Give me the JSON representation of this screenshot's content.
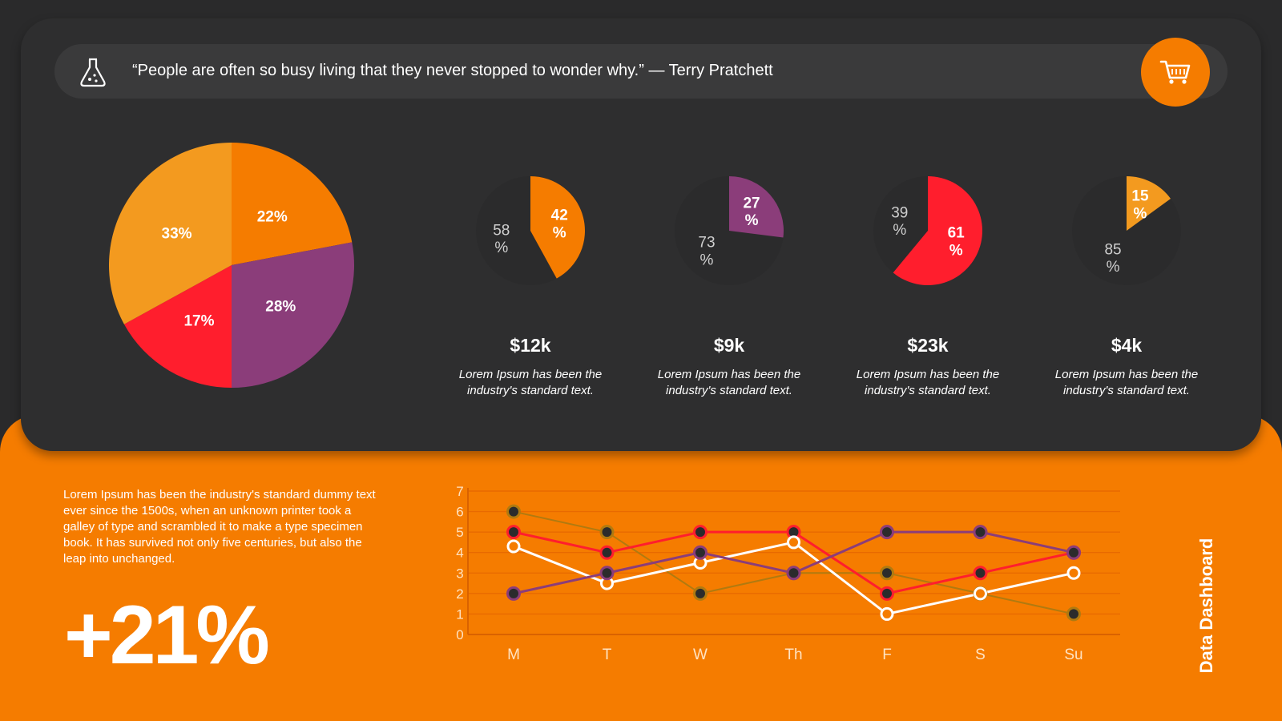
{
  "quote": {
    "text": "“People are often so busy living that they never stopped to wonder why.” — Terry Pratchett"
  },
  "icons": {
    "quote_icon": "flask-icon",
    "action_icon": "shopping-cart-icon"
  },
  "colors": {
    "orange": "#f57c00",
    "light_orange": "#f39a1f",
    "red": "#ff1e2d",
    "purple": "#8b3d7a",
    "card_dark": "#2e2e2f",
    "white": "#ffffff",
    "gold": "#b07a10"
  },
  "kpis": [
    {
      "amount": "$12k",
      "description": "Lorem Ipsum has been the industry's standard text."
    },
    {
      "amount": "$9k",
      "description": "Lorem Ipsum has been the industry's standard text."
    },
    {
      "amount": "$23k",
      "description": "Lorem Ipsum has been the industry's standard text."
    },
    {
      "amount": "$4k",
      "description": "Lorem Ipsum has been the industry's standard text."
    }
  ],
  "bottom": {
    "paragraph": "Lorem Ipsum has been the industry's standard dummy text ever since the 1500s, when an unknown printer took a galley of type and scrambled it to make a type specimen book. It has survived not only five centuries, but also the leap into unchanged.",
    "big_percent": "+21%",
    "side_title": "Data Dashboard"
  },
  "chart_data": [
    {
      "type": "pie",
      "labels": [
        "22%",
        "28%",
        "17%",
        "33%"
      ],
      "values": [
        22,
        28,
        17,
        33
      ],
      "colors": [
        "#f57c00",
        "#8b3d7a",
        "#ff1e2d",
        "#f39a1f"
      ]
    },
    {
      "type": "pie",
      "labels": [
        "42 %",
        "58 %"
      ],
      "values": [
        42,
        58
      ],
      "highlight_color": "#f57c00"
    },
    {
      "type": "pie",
      "labels": [
        "27 %",
        "73 %"
      ],
      "values": [
        27,
        73
      ],
      "highlight_color": "#8b3d7a"
    },
    {
      "type": "pie",
      "labels": [
        "61 %",
        "39 %"
      ],
      "values": [
        61,
        39
      ],
      "highlight_color": "#ff1e2d"
    },
    {
      "type": "pie",
      "labels": [
        "15 %",
        "85 %"
      ],
      "values": [
        15,
        85
      ],
      "highlight_color": "#f39a1f"
    },
    {
      "type": "line",
      "categories": [
        "M",
        "T",
        "W",
        "Th",
        "F",
        "S",
        "Su"
      ],
      "ylim": [
        0,
        7
      ],
      "yticks": [
        "0",
        "1",
        "2",
        "3",
        "4",
        "5",
        "6",
        "7"
      ],
      "grid": true,
      "series": [
        {
          "values": [
            6,
            5,
            2,
            3,
            3,
            2,
            1
          ],
          "color": "#b07a10",
          "marker": "dark"
        },
        {
          "values": [
            5,
            4,
            5,
            5,
            2,
            3,
            4
          ],
          "color": "#ff1e2d",
          "marker": "dark"
        },
        {
          "values": [
            4.3,
            2.5,
            3.5,
            4.5,
            1,
            2,
            3
          ],
          "color": "#ffffff",
          "marker": "hollow"
        },
        {
          "values": [
            2,
            3,
            4,
            3,
            5,
            5,
            4
          ],
          "color": "#8b3d7a",
          "marker": "dark"
        }
      ]
    }
  ]
}
